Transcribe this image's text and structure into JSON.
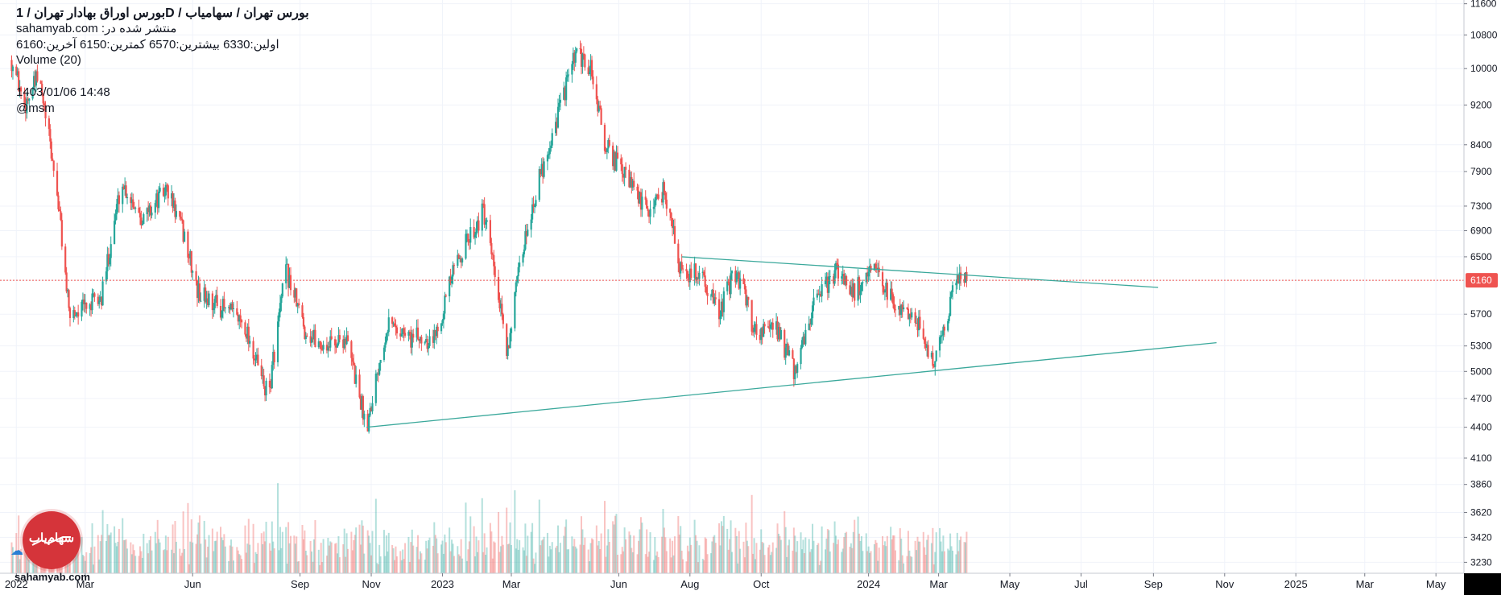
{
  "header": {
    "title": "بورس اوراق بهادار تهران / 1D / بورس تهران / سهامیاب",
    "published": "sahamyab.com :منتشر شده در",
    "ohlc": "اولین:6330 بیشترین:6570 کمترین:6150 آخرین:6160",
    "volume_label": "Volume (20)",
    "datetime": "1403/01/06 14:48",
    "user": "@msm"
  },
  "brand": {
    "site": "sahamyab.com",
    "logo_text": "سهام‌یاب",
    "logo_color": "#d5343a"
  },
  "colors": {
    "up": "#26a69a",
    "down": "#ef5350",
    "trendline": "#3aa89b",
    "price_tag": "#ef5350"
  },
  "chart_data": {
    "type": "candlestick",
    "y_axis_ticks": [
      11600,
      10800,
      10000,
      9200,
      8400,
      7900,
      7300,
      6900,
      6500,
      6160,
      5700,
      5300,
      5000,
      4700,
      4400,
      4100,
      3860,
      3620,
      3420,
      3230
    ],
    "x_axis_ticks": [
      "2022",
      "Mar",
      "Jun",
      "Sep",
      "Nov",
      "2023",
      "Mar",
      "Jun",
      "Aug",
      "Oct",
      "2024",
      "Mar",
      "May",
      "Jul",
      "Sep",
      "Nov",
      "2025",
      "Mar",
      "May"
    ],
    "last_price": 6160,
    "last_price_label": "6160",
    "price_anchors": [
      [
        "2021-12-28",
        10200
      ],
      [
        "2022-01-08",
        9200
      ],
      [
        "2022-01-20",
        9800
      ],
      [
        "2022-02-05",
        7500
      ],
      [
        "2022-02-15",
        5700
      ],
      [
        "2022-03-01",
        5800
      ],
      [
        "2022-03-15",
        5900
      ],
      [
        "2022-04-01",
        7700
      ],
      [
        "2022-04-20",
        7100
      ],
      [
        "2022-05-10",
        7600
      ],
      [
        "2022-05-25",
        6800
      ],
      [
        "2022-06-05",
        6000
      ],
      [
        "2022-06-25",
        5800
      ],
      [
        "2022-07-15",
        5600
      ],
      [
        "2022-07-28",
        5000
      ],
      [
        "2022-08-05",
        4700
      ],
      [
        "2022-08-20",
        6300
      ],
      [
        "2022-09-05",
        5500
      ],
      [
        "2022-09-20",
        5300
      ],
      [
        "2022-10-10",
        5400
      ],
      [
        "2022-10-28",
        4400
      ],
      [
        "2022-11-15",
        5600
      ],
      [
        "2022-12-05",
        5400
      ],
      [
        "2022-12-25",
        5400
      ],
      [
        "2023-01-15",
        6500
      ],
      [
        "2023-02-05",
        7200
      ],
      [
        "2023-02-25",
        5200
      ],
      [
        "2023-03-15",
        7000
      ],
      [
        "2023-04-05",
        8600
      ],
      [
        "2023-04-25",
        10300
      ],
      [
        "2023-05-08",
        10000
      ],
      [
        "2023-05-20",
        8400
      ],
      [
        "2023-06-10",
        7700
      ],
      [
        "2023-06-25",
        7200
      ],
      [
        "2023-07-10",
        7600
      ],
      [
        "2023-07-25",
        6200
      ],
      [
        "2023-08-10",
        6300
      ],
      [
        "2023-08-25",
        5700
      ],
      [
        "2023-09-10",
        6300
      ],
      [
        "2023-09-25",
        5500
      ],
      [
        "2023-10-15",
        5500
      ],
      [
        "2023-10-30",
        4950
      ],
      [
        "2023-11-15",
        5800
      ],
      [
        "2023-12-05",
        6300
      ],
      [
        "2023-12-20",
        6000
      ],
      [
        "2024-01-05",
        6300
      ],
      [
        "2024-01-25",
        5800
      ],
      [
        "2024-02-10",
        5700
      ],
      [
        "2024-02-25",
        5050
      ],
      [
        "2024-03-10",
        5800
      ],
      [
        "2024-03-20",
        6300
      ],
      [
        "2024-03-25",
        6160
      ]
    ],
    "trendline_upper": [
      [
        "2023-07-25",
        6500
      ],
      [
        "2024-09-05",
        6060
      ]
    ],
    "trendline_lower": [
      [
        "2022-10-28",
        4400
      ],
      [
        "2024-10-25",
        5340
      ]
    ]
  }
}
